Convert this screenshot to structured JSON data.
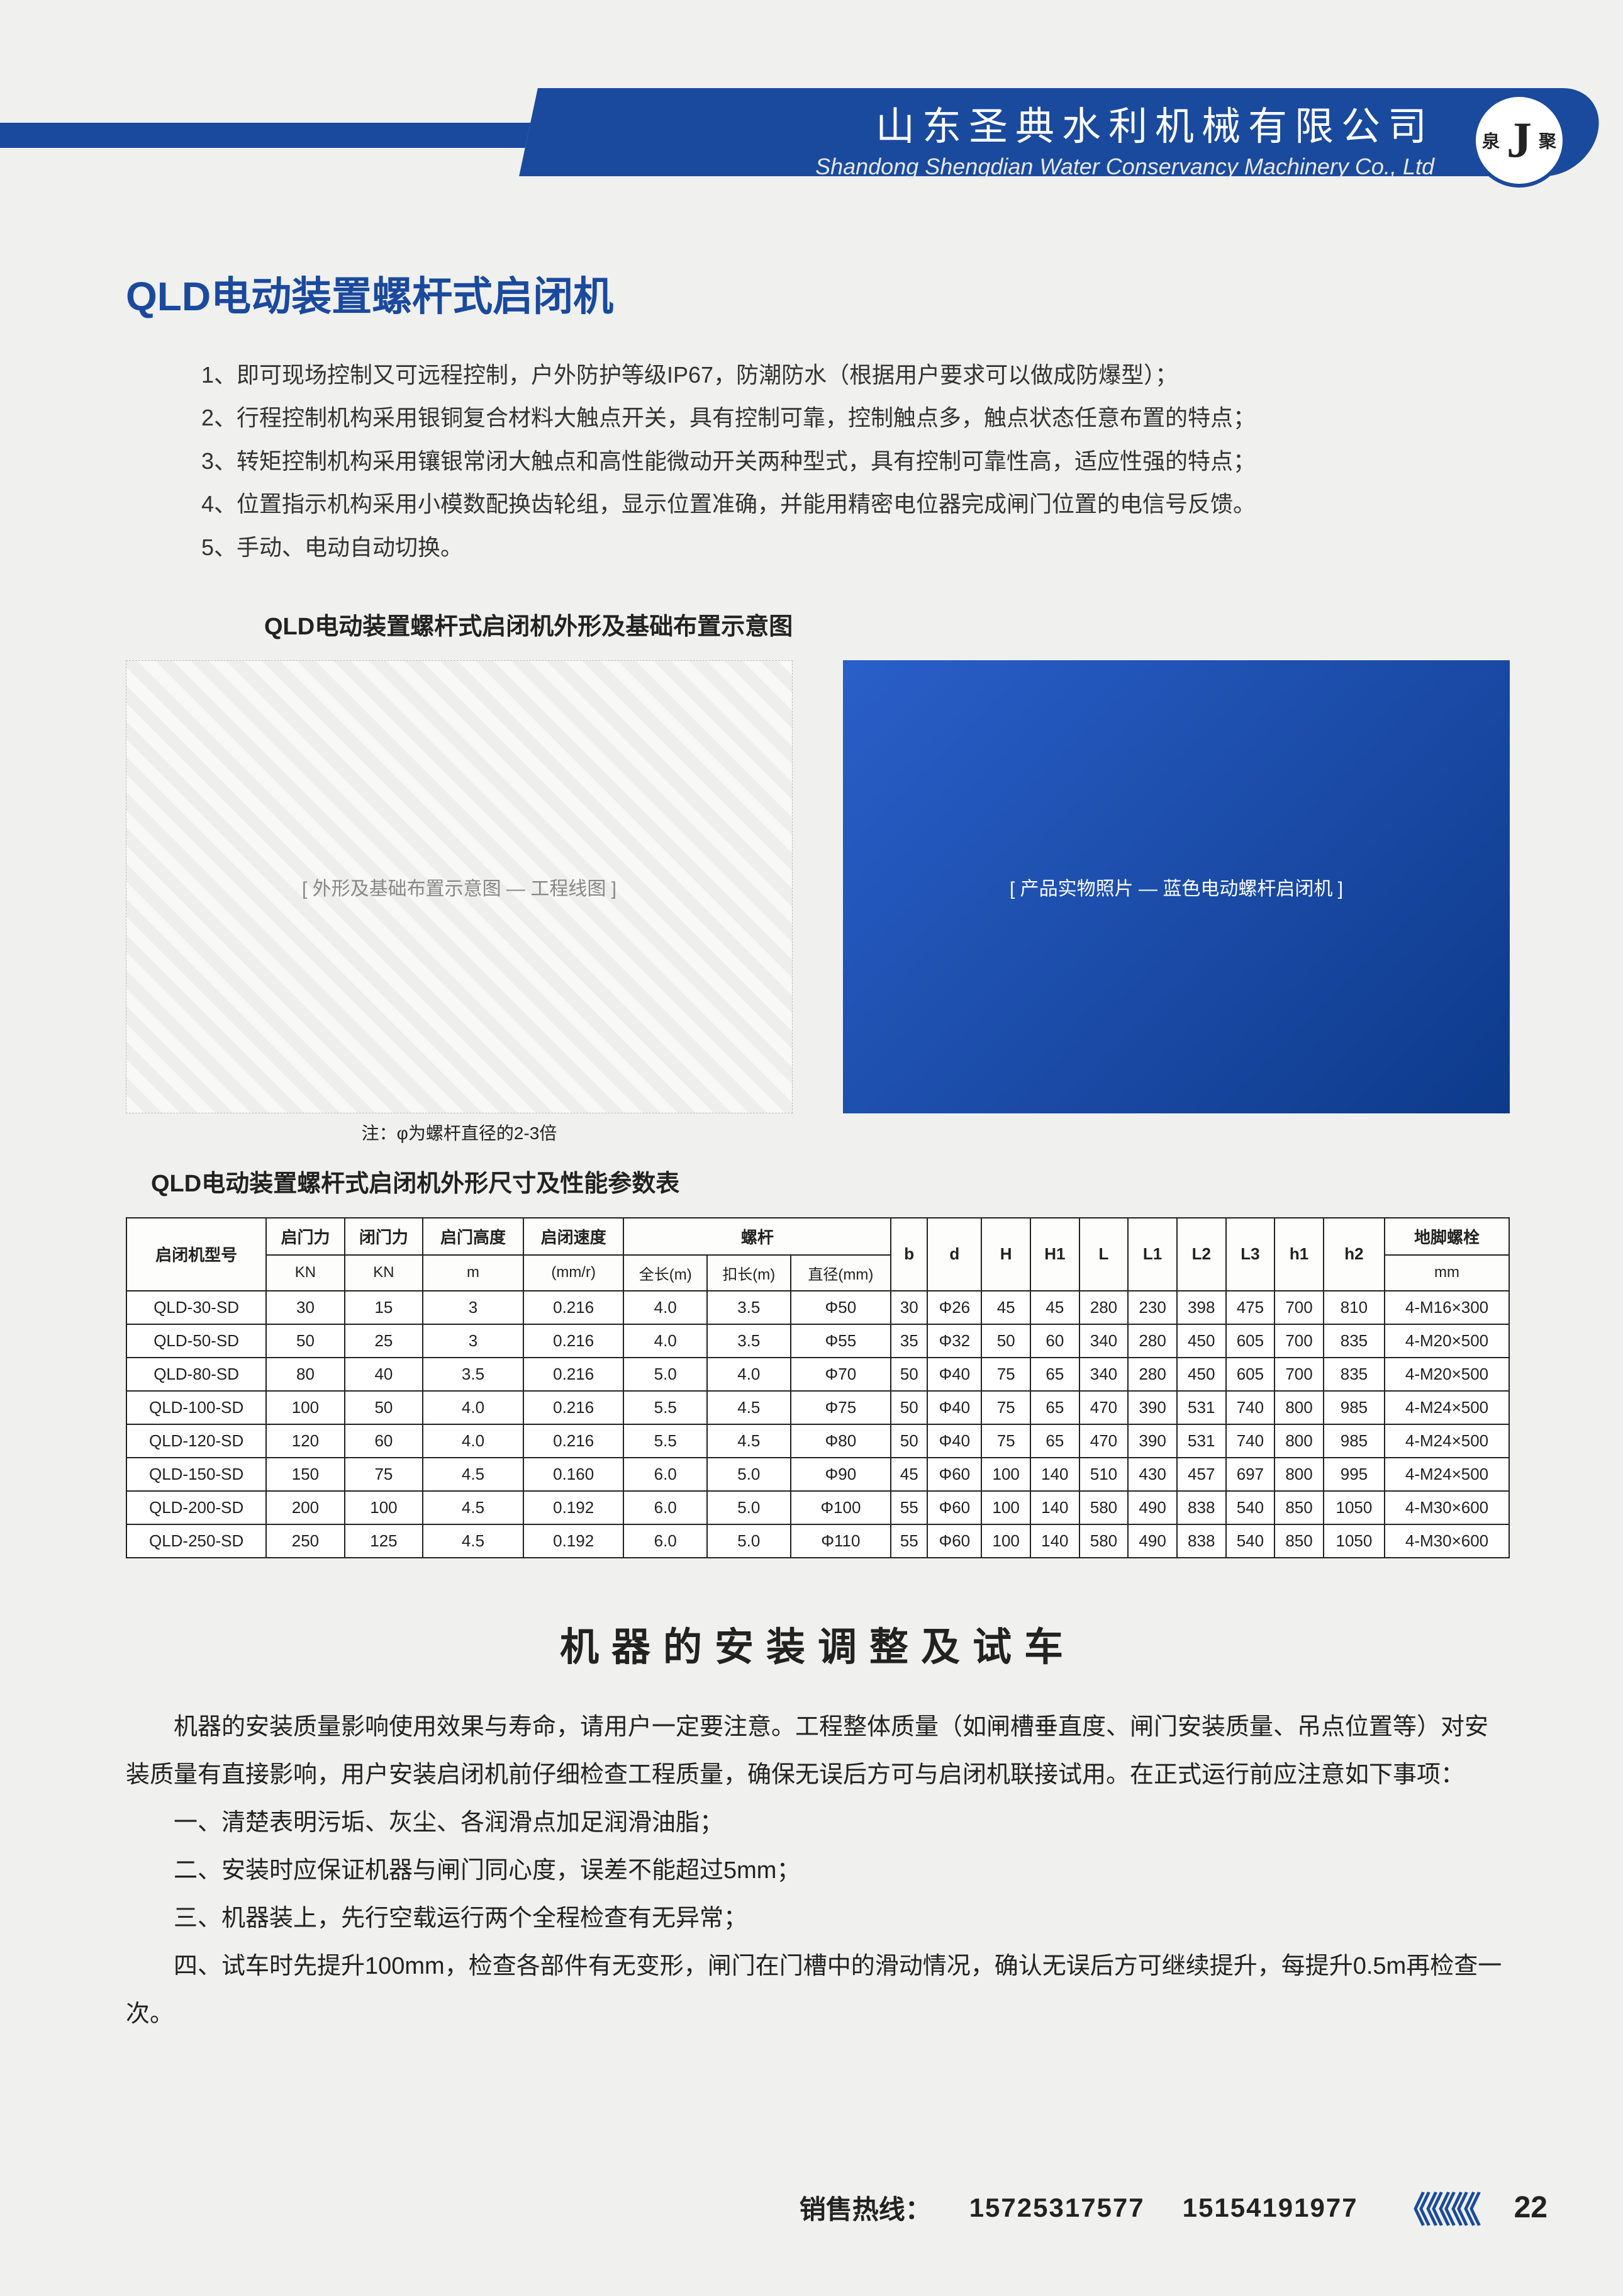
{
  "header": {
    "company_cn": "山东圣典水利机械有限公司",
    "company_en": "Shandong Shengdian Water Conservancy Machinery Co., Ltd",
    "logo_main": "J",
    "logo_left": "泉",
    "logo_right": "聚",
    "banner_color": "#1a4a9e"
  },
  "main_title": "QLD电动装置螺杆式启闭机",
  "features": [
    "1、即可现场控制又可远程控制，户外防护等级IP67，防潮防水（根据用户要求可以做成防爆型）；",
    "2、行程控制机构采用银铜复合材料大触点开关，具有控制可靠，控制触点多，触点状态任意布置的特点；",
    "3、转矩控制机构采用镶银常闭大触点和高性能微动开关两种型式，具有控制可靠性高，适应性强的特点；",
    "4、位置指示机构采用小模数配换齿轮组，显示位置准确，并能用精密电位器完成闸门位置的电信号反馈。",
    "5、手动、电动自动切换。"
  ],
  "diagram": {
    "title": "QLD电动装置螺杆式启闭机外形及基础布置示意图",
    "drawing_label": "[ 外形及基础布置示意图 — 工程线图 ]",
    "photo_label": "[ 产品实物照片 — 蓝色电动螺杆启闭机 ]",
    "note": "注：φ为螺杆直径的2-3倍"
  },
  "table": {
    "title": "QLD电动装置螺杆式启闭机外形尺寸及性能参数表",
    "header_group": {
      "model": "启闭机型号",
      "open_force": "启门力",
      "close_force": "闭门力",
      "height": "启门高度",
      "speed": "启闭速度",
      "screw": "螺杆",
      "b": "b",
      "d": "d",
      "H": "H",
      "H1": "H1",
      "L": "L",
      "L1": "L1",
      "L2": "L2",
      "L3": "L3",
      "h1": "h1",
      "h2": "h2",
      "bolt": "地脚螺栓"
    },
    "header_sub": {
      "open_force_u": "KN",
      "close_force_u": "KN",
      "height_u": "m",
      "speed_u": "(mm/r)",
      "full_len": "全长(m)",
      "eff_len": "扣长(m)",
      "dia": "直径(mm)",
      "bolt_u": "mm"
    },
    "rows": [
      {
        "model": "QLD-30-SD",
        "open": "30",
        "close": "15",
        "h": "3",
        "spd": "0.216",
        "fl": "4.0",
        "el": "3.5",
        "dia": "Φ50",
        "b": "30",
        "d": "Φ26",
        "H": "45",
        "H1": "45",
        "L": "280",
        "L1": "230",
        "L2": "398",
        "L3": "475",
        "h1": "700",
        "h2": "810",
        "bolt": "4-M16×300"
      },
      {
        "model": "QLD-50-SD",
        "open": "50",
        "close": "25",
        "h": "3",
        "spd": "0.216",
        "fl": "4.0",
        "el": "3.5",
        "dia": "Φ55",
        "b": "35",
        "d": "Φ32",
        "H": "50",
        "H1": "60",
        "L": "340",
        "L1": "280",
        "L2": "450",
        "L3": "605",
        "h1": "700",
        "h2": "835",
        "bolt": "4-M20×500"
      },
      {
        "model": "QLD-80-SD",
        "open": "80",
        "close": "40",
        "h": "3.5",
        "spd": "0.216",
        "fl": "5.0",
        "el": "4.0",
        "dia": "Φ70",
        "b": "50",
        "d": "Φ40",
        "H": "75",
        "H1": "65",
        "L": "340",
        "L1": "280",
        "L2": "450",
        "L3": "605",
        "h1": "700",
        "h2": "835",
        "bolt": "4-M20×500"
      },
      {
        "model": "QLD-100-SD",
        "open": "100",
        "close": "50",
        "h": "4.0",
        "spd": "0.216",
        "fl": "5.5",
        "el": "4.5",
        "dia": "Φ75",
        "b": "50",
        "d": "Φ40",
        "H": "75",
        "H1": "65",
        "L": "470",
        "L1": "390",
        "L2": "531",
        "L3": "740",
        "h1": "800",
        "h2": "985",
        "bolt": "4-M24×500"
      },
      {
        "model": "QLD-120-SD",
        "open": "120",
        "close": "60",
        "h": "4.0",
        "spd": "0.216",
        "fl": "5.5",
        "el": "4.5",
        "dia": "Φ80",
        "b": "50",
        "d": "Φ40",
        "H": "75",
        "H1": "65",
        "L": "470",
        "L1": "390",
        "L2": "531",
        "L3": "740",
        "h1": "800",
        "h2": "985",
        "bolt": "4-M24×500"
      },
      {
        "model": "QLD-150-SD",
        "open": "150",
        "close": "75",
        "h": "4.5",
        "spd": "0.160",
        "fl": "6.0",
        "el": "5.0",
        "dia": "Φ90",
        "b": "45",
        "d": "Φ60",
        "H": "100",
        "H1": "140",
        "L": "510",
        "L1": "430",
        "L2": "457",
        "L3": "697",
        "h1": "800",
        "h2": "995",
        "bolt": "4-M24×500"
      },
      {
        "model": "QLD-200-SD",
        "open": "200",
        "close": "100",
        "h": "4.5",
        "spd": "0.192",
        "fl": "6.0",
        "el": "5.0",
        "dia": "Φ100",
        "b": "55",
        "d": "Φ60",
        "H": "100",
        "H1": "140",
        "L": "580",
        "L1": "490",
        "L2": "838",
        "L3": "540",
        "h1": "850",
        "h2": "1050",
        "bolt": "4-M30×600"
      },
      {
        "model": "QLD-250-SD",
        "open": "250",
        "close": "125",
        "h": "4.5",
        "spd": "0.192",
        "fl": "6.0",
        "el": "5.0",
        "dia": "Φ110",
        "b": "55",
        "d": "Φ60",
        "H": "100",
        "H1": "140",
        "L": "580",
        "L1": "490",
        "L2": "838",
        "L3": "540",
        "h1": "850",
        "h2": "1050",
        "bolt": "4-M30×600"
      }
    ]
  },
  "install": {
    "title": "机器的安装调整及试车",
    "intro": "机器的安装质量影响使用效果与寿命，请用户一定要注意。工程整体质量（如闸槽垂直度、闸门安装质量、吊点位置等）对安装质量有直接影响，用户安装启闭机前仔细检查工程质量，确保无误后方可与启闭机联接试用。在正式运行前应注意如下事项：",
    "items": [
      "一、清楚表明污垢、灰尘、各润滑点加足润滑油脂；",
      "二、安装时应保证机器与闸门同心度，误差不能超过5mm；",
      "三、机器装上，先行空载运行两个全程检查有无异常；",
      "四、试车时先提升100mm，检查各部件有无变形，闸门在门槽中的滑动情况，确认无误后方可继续提升，每提升0.5m再检查一次。"
    ]
  },
  "footer": {
    "label": "销售热线：",
    "phone1": "15725317577",
    "phone2": "15154191977",
    "chevrons": "《《《《《",
    "page": "22"
  }
}
